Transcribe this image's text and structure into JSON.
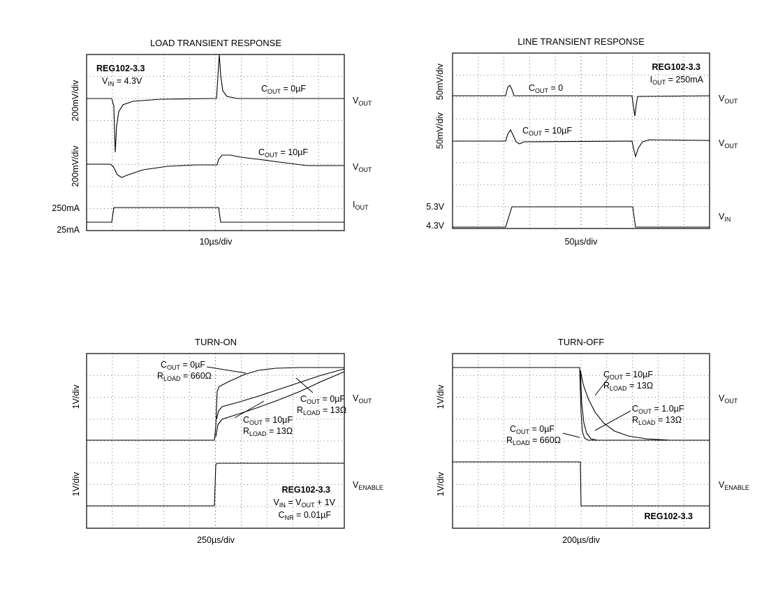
{
  "chart_data": [
    {
      "type": "line",
      "title": "LOAD TRANSIENT RESPONSE",
      "xlabel": "10µs/div",
      "annotation_title": "REG102-3.3",
      "annotation_vin": {
        "main": "V",
        "sub": "IN",
        "rest": " = 4.3V"
      },
      "ylabels": [
        "200mV/div",
        "200mV/div"
      ],
      "level_labels": [
        "250mA",
        "25mA"
      ],
      "series_labels": [
        {
          "main": "C",
          "sub": "OUT",
          "rest": " = 0µF"
        },
        {
          "main": "C",
          "sub": "OUT",
          "rest": " = 10µF"
        }
      ],
      "right_labels": [
        {
          "main": "V",
          "sub": "OUT"
        },
        {
          "main": "V",
          "sub": "OUT"
        },
        {
          "main": "I",
          "sub": "OUT"
        }
      ],
      "grid": true
    },
    {
      "type": "line",
      "title": "LINE TRANSIENT RESPONSE",
      "xlabel": "50µs/div",
      "annotation_title": "REG102-3.3",
      "annotation_iout": {
        "main": "I",
        "sub": "OUT",
        "rest": " = 250mA"
      },
      "ylabels": [
        "50mV/div",
        "50mV/div"
      ],
      "level_labels": [
        "5.3V",
        "4.3V"
      ],
      "series_labels": [
        {
          "main": "C",
          "sub": "OUT",
          "rest": " = 0"
        },
        {
          "main": "C",
          "sub": "OUT",
          "rest": " = 10µF"
        }
      ],
      "right_labels": [
        {
          "main": "V",
          "sub": "OUT"
        },
        {
          "main": "V",
          "sub": "OUT"
        },
        {
          "main": "V",
          "sub": "IN"
        }
      ],
      "grid": true
    },
    {
      "type": "line",
      "title": "TURN-ON",
      "xlabel": "250µs/div",
      "ylabels": [
        "1V/div",
        "1V/div"
      ],
      "curve_labels": [
        {
          "line1": {
            "main": "C",
            "sub": "OUT",
            "rest": " = 0µF"
          },
          "line2": {
            "main": "R",
            "sub": "LOAD",
            "rest": " = 660Ω"
          }
        },
        {
          "line1": {
            "main": "C",
            "sub": "OUT",
            "rest": " = 0µF"
          },
          "line2": {
            "main": "R",
            "sub": "LOAD",
            "rest": " = 13Ω"
          }
        },
        {
          "line1": {
            "main": "C",
            "sub": "OUT",
            "rest": " = 10µF"
          },
          "line2": {
            "main": "R",
            "sub": "LOAD",
            "rest": " = 13Ω"
          }
        }
      ],
      "annotation_title": "REG102-3.3",
      "annotation_vin": "V",
      "annotation_vin_sub": "IN",
      "annotation_vin_mid": " = V",
      "annotation_vin_sub2": "OUT",
      "annotation_vin_rest": " + 1V",
      "annotation_cnr": {
        "main": "C",
        "sub": "NR",
        "rest": " = 0.01µF"
      },
      "right_labels": [
        {
          "main": "V",
          "sub": "OUT"
        },
        {
          "main": "V",
          "sub": "ENABLE"
        }
      ],
      "grid": true
    },
    {
      "type": "line",
      "title": "TURN-OFF",
      "xlabel": "200µs/div",
      "ylabels": [
        "1V/div",
        "1V/div"
      ],
      "curve_labels": [
        {
          "line1": {
            "main": "C",
            "sub": "OUT",
            "rest": " = 10µF"
          },
          "line2": {
            "main": "R",
            "sub": "LOAD",
            "rest": " = 13Ω"
          }
        },
        {
          "line1": {
            "main": "C",
            "sub": "OUT",
            "rest": " = 1.0µF"
          },
          "line2": {
            "main": "R",
            "sub": "LOAD",
            "rest": " = 13Ω"
          }
        },
        {
          "line1": {
            "main": "C",
            "sub": "OUT",
            "rest": " = 0µF"
          },
          "line2": {
            "main": "R",
            "sub": "LOAD",
            "rest": " = 660Ω"
          }
        }
      ],
      "annotation_title": "REG102-3.3",
      "right_labels": [
        {
          "main": "V",
          "sub": "OUT"
        },
        {
          "main": "V",
          "sub": "ENABLE"
        }
      ],
      "grid": true
    }
  ]
}
